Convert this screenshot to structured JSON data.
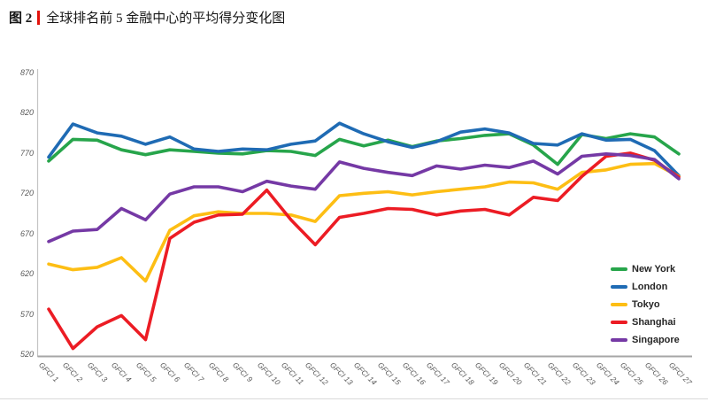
{
  "page": {
    "title_figure": "图 2",
    "title_text": "全球排名前 5 金融中心的平均得分变化图",
    "accent_color": "#E3120B"
  },
  "chart_data": {
    "type": "line",
    "title": "全球排名前 5 金融中心的平均得分变化图",
    "xlabel": "",
    "ylabel": "",
    "ylim": [
      520,
      870
    ],
    "y_ticks": [
      870,
      820,
      770,
      720,
      670,
      620,
      570,
      520
    ],
    "grid": false,
    "legend_position": "inside-bottom-right",
    "axis_color": "#C4C4C4",
    "baseline_color": "#A6A6A6",
    "tick_label_color": "#595959",
    "x_labels": [
      "GFCI 1",
      "GFCI 2",
      "GFCI 3",
      "GFCI 4",
      "GFCI 5",
      "GFCI 6",
      "GFCI 7",
      "GFCI 8",
      "GFCI 9",
      "GFCI 10",
      "GFCI 11",
      "GFCI 12",
      "GFCI 13",
      "GFCI 14",
      "GFCI 15",
      "GFCI 16",
      "GFCI 17",
      "GFCI 18",
      "GFCI 19",
      "GFCI 20",
      "GFCI 21",
      "GFCI 22",
      "GFCI 23",
      "GFCI 24",
      "GFCI 25",
      "GFCI 26",
      "GFCI 27"
    ],
    "series": [
      {
        "name": "New York",
        "color": "#27A54B",
        "values": [
          760,
          787,
          786,
          774,
          768,
          774,
          772,
          770,
          769,
          773,
          772,
          767,
          787,
          779,
          786,
          778,
          785,
          788,
          792,
          794,
          780,
          756,
          793,
          788,
          794,
          790,
          769
        ]
      },
      {
        "name": "London",
        "color": "#1F6BB4",
        "values": [
          765,
          806,
          795,
          791,
          781,
          790,
          775,
          772,
          775,
          774,
          781,
          785,
          807,
          794,
          784,
          777,
          784,
          796,
          800,
          795,
          782,
          780,
          794,
          786,
          787,
          773,
          742
        ]
      },
      {
        "name": "Tokyo",
        "color": "#FDBE14",
        "values": [
          632,
          625,
          628,
          640,
          611,
          674,
          692,
          697,
          695,
          695,
          693,
          685,
          717,
          720,
          722,
          718,
          722,
          725,
          728,
          734,
          733,
          725,
          746,
          749,
          756,
          757,
          741
        ]
      },
      {
        "name": "Shanghai",
        "color": "#EC1C24",
        "values": [
          576,
          527,
          554,
          568,
          538,
          664,
          684,
          693,
          694,
          724,
          687,
          656,
          690,
          695,
          701,
          700,
          693,
          698,
          700,
          693,
          715,
          711,
          741,
          766,
          770,
          761,
          740
        ]
      },
      {
        "name": "Singapore",
        "color": "#7539A5",
        "values": [
          660,
          673,
          675,
          701,
          687,
          719,
          728,
          728,
          722,
          735,
          729,
          725,
          759,
          751,
          746,
          742,
          754,
          750,
          755,
          752,
          760,
          744,
          766,
          769,
          767,
          762,
          738
        ]
      }
    ]
  }
}
